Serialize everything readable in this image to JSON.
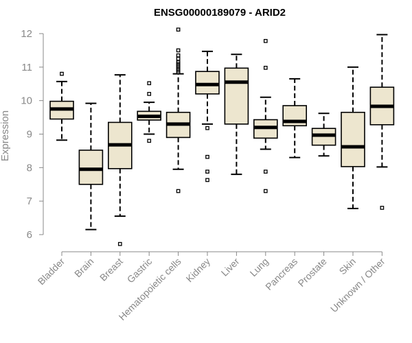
{
  "chart_data": {
    "type": "boxplot",
    "title": "ENSG00000189079 - ARID2",
    "xlabel": "",
    "ylabel": "Expression",
    "ylim": [
      6,
      12
    ],
    "yticks": [
      6,
      7,
      8,
      9,
      10,
      11,
      12
    ],
    "colors": {
      "box_fill": "#ede6cf",
      "box_stroke": "#000000",
      "axis": "#888888"
    },
    "categories": [
      "Bladder",
      "Brain",
      "Breast",
      "Gastric",
      "Hematopoietic cells",
      "Kidney",
      "Liver",
      "Lung",
      "Pancreas",
      "Prostate",
      "Skin",
      "Unknown / Other"
    ],
    "boxes": [
      {
        "category": "Bladder",
        "whisker_low": 8.82,
        "q1": 9.45,
        "median": 9.75,
        "q3": 9.98,
        "whisker_high": 10.57,
        "outliers": [
          10.8
        ]
      },
      {
        "category": "Brain",
        "whisker_low": 6.15,
        "q1": 7.5,
        "median": 7.95,
        "q3": 8.52,
        "whisker_high": 9.92,
        "outliers": []
      },
      {
        "category": "Breast",
        "whisker_low": 6.55,
        "q1": 7.97,
        "median": 8.68,
        "q3": 9.35,
        "whisker_high": 10.77,
        "outliers": [
          5.72
        ]
      },
      {
        "category": "Gastric",
        "whisker_low": 9.0,
        "q1": 9.42,
        "median": 9.53,
        "q3": 9.68,
        "whisker_high": 9.95,
        "outliers": [
          8.8,
          10.2,
          10.52
        ]
      },
      {
        "category": "Hematopoietic cells",
        "whisker_low": 7.95,
        "q1": 8.9,
        "median": 9.3,
        "q3": 9.65,
        "whisker_high": 10.8,
        "outliers": [
          7.3,
          10.85,
          10.9,
          10.95,
          11.0,
          11.05,
          11.1,
          11.15,
          11.25,
          11.35,
          11.5,
          12.12
        ]
      },
      {
        "category": "Kidney",
        "whisker_low": 9.3,
        "q1": 10.2,
        "median": 10.48,
        "q3": 10.87,
        "whisker_high": 11.47,
        "outliers": [
          9.18,
          8.32,
          7.88,
          7.63
        ]
      },
      {
        "category": "Liver",
        "whisker_low": 7.8,
        "q1": 9.3,
        "median": 10.55,
        "q3": 10.97,
        "whisker_high": 11.38,
        "outliers": []
      },
      {
        "category": "Lung",
        "whisker_low": 8.55,
        "q1": 8.88,
        "median": 9.2,
        "q3": 9.43,
        "whisker_high": 10.1,
        "outliers": [
          11.78,
          10.98,
          7.88,
          7.3
        ]
      },
      {
        "category": "Pancreas",
        "whisker_low": 8.3,
        "q1": 9.25,
        "median": 9.38,
        "q3": 9.85,
        "whisker_high": 10.65,
        "outliers": []
      },
      {
        "category": "Prostate",
        "whisker_low": 8.35,
        "q1": 8.67,
        "median": 8.97,
        "q3": 9.17,
        "whisker_high": 9.62,
        "outliers": []
      },
      {
        "category": "Skin",
        "whisker_low": 6.78,
        "q1": 8.03,
        "median": 8.62,
        "q3": 9.65,
        "whisker_high": 11.0,
        "outliers": []
      },
      {
        "category": "Unknown / Other",
        "whisker_low": 8.02,
        "q1": 9.28,
        "median": 9.83,
        "q3": 10.4,
        "whisker_high": 11.97,
        "outliers": [
          6.8
        ]
      }
    ]
  }
}
